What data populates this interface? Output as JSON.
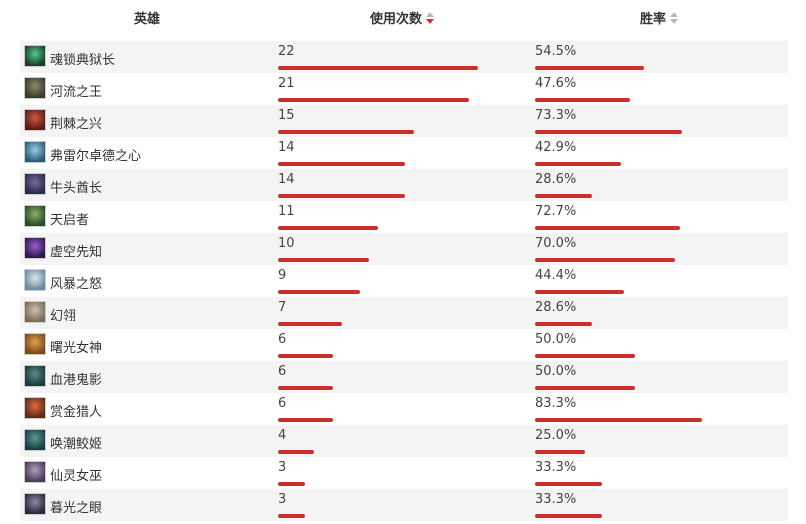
{
  "header": {
    "hero_label": "英雄",
    "uses_label": "使用次数",
    "winrate_label": "胜率"
  },
  "colors": {
    "bar": "#c9302c",
    "row_alt": "#f4f4f4",
    "sort_active": "#d0302f"
  },
  "rows": [
    {
      "name": "魂锁典狱长",
      "uses": "22",
      "winrate": "54.5%",
      "uses_fraction": 1.0,
      "win_fraction": 0.545,
      "avatar": [
        "#1d3a2a",
        "#4bd08a"
      ]
    },
    {
      "name": "河流之王",
      "uses": "21",
      "winrate": "47.6%",
      "uses_fraction": 0.955,
      "win_fraction": 0.476,
      "avatar": [
        "#3a3a2a",
        "#8a8a6a"
      ]
    },
    {
      "name": "荆棘之兴",
      "uses": "15",
      "winrate": "73.3%",
      "uses_fraction": 0.682,
      "win_fraction": 0.733,
      "avatar": [
        "#5a1a1a",
        "#d05a3a"
      ]
    },
    {
      "name": "弗雷尔卓德之心",
      "uses": "14",
      "winrate": "42.9%",
      "uses_fraction": 0.636,
      "win_fraction": 0.429,
      "avatar": [
        "#2a5a7a",
        "#9ad0e0"
      ]
    },
    {
      "name": "牛头酋长",
      "uses": "14",
      "winrate": "28.6%",
      "uses_fraction": 0.636,
      "win_fraction": 0.286,
      "avatar": [
        "#2a2a4a",
        "#7a6aa0"
      ]
    },
    {
      "name": "天启者",
      "uses": "11",
      "winrate": "72.7%",
      "uses_fraction": 0.5,
      "win_fraction": 0.727,
      "avatar": [
        "#2a4a2a",
        "#8ab06a"
      ]
    },
    {
      "name": "虚空先知",
      "uses": "10",
      "winrate": "70.0%",
      "uses_fraction": 0.455,
      "win_fraction": 0.7,
      "avatar": [
        "#2a1a4a",
        "#9a5ad0"
      ]
    },
    {
      "name": "风暴之怒",
      "uses": "9",
      "winrate": "44.4%",
      "uses_fraction": 0.409,
      "win_fraction": 0.444,
      "avatar": [
        "#6a8aa0",
        "#dde6ee"
      ]
    },
    {
      "name": "幻翎",
      "uses": "7",
      "winrate": "28.6%",
      "uses_fraction": 0.318,
      "win_fraction": 0.286,
      "avatar": [
        "#7a6a5a",
        "#d0c0b0"
      ]
    },
    {
      "name": "曙光女神",
      "uses": "6",
      "winrate": "50.0%",
      "uses_fraction": 0.273,
      "win_fraction": 0.5,
      "avatar": [
        "#7a4a1a",
        "#e0a050"
      ]
    },
    {
      "name": "血港鬼影",
      "uses": "6",
      "winrate": "50.0%",
      "uses_fraction": 0.273,
      "win_fraction": 0.5,
      "avatar": [
        "#1a3a3a",
        "#5a8a8a"
      ]
    },
    {
      "name": "赏金猎人",
      "uses": "6",
      "winrate": "83.3%",
      "uses_fraction": 0.273,
      "win_fraction": 0.833,
      "avatar": [
        "#5a2a1a",
        "#e06a3a"
      ]
    },
    {
      "name": "唤潮鲛姬",
      "uses": "4",
      "winrate": "25.0%",
      "uses_fraction": 0.182,
      "win_fraction": 0.25,
      "avatar": [
        "#1a3a4a",
        "#5a9a8a"
      ]
    },
    {
      "name": "仙灵女巫",
      "uses": "3",
      "winrate": "33.3%",
      "uses_fraction": 0.136,
      "win_fraction": 0.333,
      "avatar": [
        "#4a3a5a",
        "#b0a0c0"
      ]
    },
    {
      "name": "暮光之眼",
      "uses": "3",
      "winrate": "33.3%",
      "uses_fraction": 0.136,
      "win_fraction": 0.333,
      "avatar": [
        "#2a2a3a",
        "#8a8aa0"
      ]
    }
  ]
}
